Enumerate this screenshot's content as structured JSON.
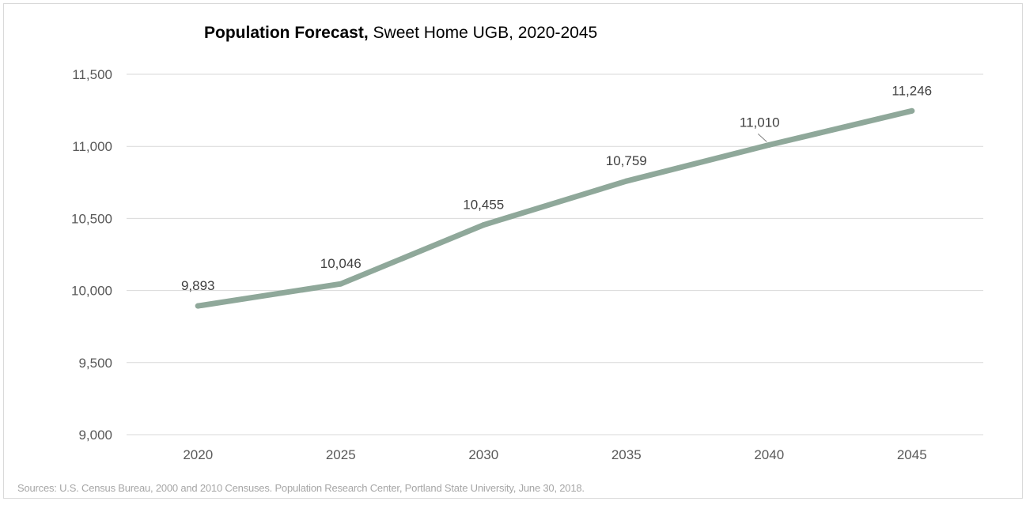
{
  "chart_data": {
    "type": "line",
    "title_bold": "Population  Forecast,",
    "title_rest": " Sweet Home UGB, 2020-2045",
    "xlabel": "",
    "ylabel": "",
    "categories": [
      "2020",
      "2025",
      "2030",
      "2035",
      "2040",
      "2045"
    ],
    "series": [
      {
        "values": [
          9893,
          10046,
          10455,
          10759,
          11010,
          11246
        ],
        "labels": [
          "9,893",
          "10,046",
          "10,455",
          "10,759",
          "11,010",
          "11,246"
        ],
        "color": "#8fa89a"
      }
    ],
    "ylim": [
      9000,
      11500
    ],
    "yticks": [
      9000,
      9500,
      10000,
      10500,
      11000,
      11500
    ],
    "ytick_labels": [
      "9,000",
      "9,500",
      "10,000",
      "10,500",
      "11,000",
      "11,500"
    ],
    "grid": true,
    "legend": "none",
    "source": "Sources: U.S. Census Bureau, 2000 and 2010 Censuses. Population Research Center, Portland State University, June 30, 2018."
  }
}
